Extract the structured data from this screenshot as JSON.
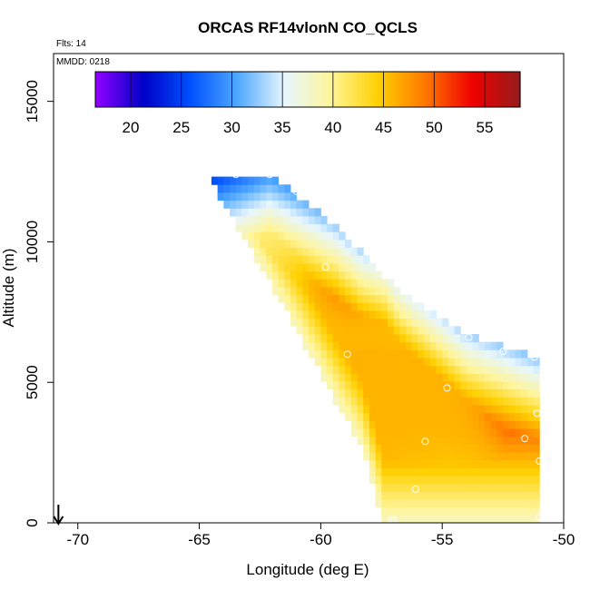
{
  "chart_data": {
    "type": "heatmap",
    "title": "ORCAS RF14vlonN CO_QCLS",
    "annotations": {
      "flights": "Flts: 14",
      "date": "MMDD: 0218"
    },
    "xlabel": "Longitude (deg E)",
    "ylabel": "Altitude (m)",
    "xlim": [
      -71,
      -50
    ],
    "ylim": [
      0,
      16700
    ],
    "x_ticks": [
      -70,
      -65,
      -60,
      -55,
      -50
    ],
    "x_tick_labels": [
      "-70",
      "-65",
      "-60",
      "-55",
      "-50"
    ],
    "y_ticks": [
      0,
      5000,
      10000,
      15000
    ],
    "y_tick_labels": [
      "0",
      "5000",
      "10000",
      "15000"
    ],
    "colorbar": {
      "range": [
        16.5,
        58.5
      ],
      "ticks": [
        20,
        25,
        30,
        35,
        40,
        45,
        50,
        55
      ],
      "tick_labels": [
        "20",
        "25",
        "30",
        "35",
        "40",
        "45",
        "50",
        "55"
      ],
      "colors": [
        "#8f00ff",
        "#0000c8",
        "#0050ff",
        "#4fa8ff",
        "#e6f6ff",
        "#fff59a",
        "#ffd000",
        "#ff7800",
        "#f00000",
        "#961c1c"
      ]
    },
    "region": {
      "upper_edge": [
        [
          -64.7,
          12400
        ],
        [
          -62.1,
          12400
        ],
        [
          -59.4,
          10600
        ],
        [
          -56.8,
          8300
        ],
        [
          -54.0,
          6700
        ],
        [
          -51.1,
          5900
        ],
        [
          -51.1,
          0
        ]
      ],
      "lower_edge": [
        [
          -64.7,
          12400
        ],
        [
          -62.8,
          9600
        ],
        [
          -61.1,
          7000
        ],
        [
          -59.5,
          4500
        ],
        [
          -58.3,
          2700
        ],
        [
          -57.8,
          1200
        ],
        [
          -57.4,
          0
        ]
      ]
    },
    "observation_points": [
      {
        "lon": -64.6,
        "alt": 12400
      },
      {
        "lon": -63.5,
        "alt": 12400
      },
      {
        "lon": -62.1,
        "alt": 12400
      },
      {
        "lon": -61.0,
        "alt": 11800
      },
      {
        "lon": -59.8,
        "alt": 9100
      },
      {
        "lon": -58.9,
        "alt": 6000
      },
      {
        "lon": -53.9,
        "alt": 6600
      },
      {
        "lon": -52.5,
        "alt": 6100
      },
      {
        "lon": -51.2,
        "alt": 5900
      },
      {
        "lon": -54.8,
        "alt": 4800
      },
      {
        "lon": -51.1,
        "alt": 3900
      },
      {
        "lon": -51.6,
        "alt": 3000
      },
      {
        "lon": -55.7,
        "alt": 2900
      },
      {
        "lon": -51.0,
        "alt": 2200
      },
      {
        "lon": -56.1,
        "alt": 1200
      },
      {
        "lon": -57.1,
        "alt": 100
      },
      {
        "lon": -57.0,
        "alt": 100
      },
      {
        "lon": -51.0,
        "alt": 200
      }
    ],
    "arrow_marker": {
      "lon": -70.8,
      "direction": "down"
    }
  }
}
